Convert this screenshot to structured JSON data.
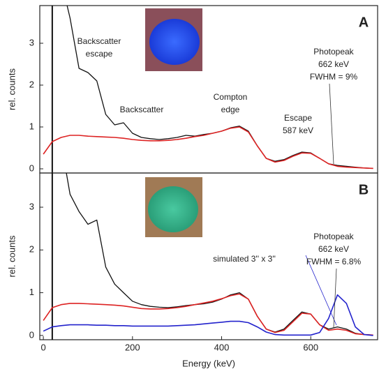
{
  "chart_data": [
    {
      "type": "line",
      "ylabel": "rel. counts",
      "panel_label": "A",
      "x": [
        0,
        20,
        40,
        60,
        80,
        100,
        120,
        140,
        160,
        180,
        200,
        220,
        240,
        260,
        280,
        300,
        320,
        340,
        360,
        380,
        400,
        420,
        440,
        460,
        480,
        500,
        520,
        540,
        560,
        580,
        600,
        620,
        640,
        660,
        680,
        700,
        720,
        740
      ],
      "series": [
        {
          "color": "#111111",
          "values": [
            null,
            null,
            4.5,
            3.6,
            2.4,
            2.3,
            2.1,
            1.3,
            1.05,
            1.1,
            0.85,
            0.75,
            0.72,
            0.7,
            0.72,
            0.75,
            0.8,
            0.78,
            0.82,
            0.85,
            0.9,
            0.98,
            1.02,
            0.9,
            0.55,
            0.25,
            0.18,
            0.22,
            0.32,
            0.4,
            0.38,
            0.25,
            0.12,
            0.08,
            0.06,
            0.04,
            0.02,
            0.01
          ]
        },
        {
          "color": "#dd2222",
          "values": [
            0.35,
            0.65,
            0.75,
            0.8,
            0.8,
            0.78,
            0.77,
            0.76,
            0.75,
            0.73,
            0.7,
            0.68,
            0.67,
            0.67,
            0.68,
            0.7,
            0.73,
            0.77,
            0.8,
            0.85,
            0.9,
            0.97,
            1.0,
            0.88,
            0.55,
            0.25,
            0.16,
            0.2,
            0.3,
            0.38,
            0.37,
            0.25,
            0.12,
            0.06,
            0.04,
            0.03,
            0.02,
            0.01
          ]
        }
      ],
      "vline": 20,
      "xlim": [
        -8,
        750
      ],
      "ylim": [
        -0.1,
        3.9
      ],
      "yticks": [
        0,
        1,
        2,
        3
      ],
      "annotations": [
        {
          "text": [
            "Backscatter",
            "escape"
          ]
        },
        {
          "text": [
            "Backscatter"
          ]
        },
        {
          "text": [
            "Compton",
            "edge"
          ]
        },
        {
          "text": [
            "Escape",
            "587 keV"
          ]
        },
        {
          "text": [
            "Photopeak",
            "662 keV",
            "FWHM = 9%"
          ]
        }
      ]
    },
    {
      "type": "line",
      "ylabel": "rel. counts",
      "xlabel": "Energy (keV)",
      "panel_label": "B",
      "x": [
        0,
        20,
        40,
        60,
        80,
        100,
        120,
        140,
        160,
        180,
        200,
        220,
        240,
        260,
        280,
        300,
        320,
        340,
        360,
        380,
        400,
        420,
        440,
        460,
        480,
        500,
        520,
        540,
        560,
        580,
        600,
        620,
        640,
        660,
        680,
        700,
        720,
        740
      ],
      "series": [
        {
          "color": "#111111",
          "values": [
            null,
            null,
            4.5,
            3.3,
            2.9,
            2.6,
            2.7,
            1.6,
            1.2,
            1.0,
            0.8,
            0.72,
            0.68,
            0.66,
            0.65,
            0.67,
            0.7,
            0.72,
            0.74,
            0.78,
            0.85,
            0.95,
            1.0,
            0.85,
            0.45,
            0.15,
            0.08,
            0.15,
            0.35,
            0.55,
            0.5,
            0.25,
            0.15,
            0.2,
            0.15,
            0.05,
            0.02,
            0.01
          ]
        },
        {
          "color": "#dd2222",
          "values": [
            0.35,
            0.65,
            0.72,
            0.75,
            0.75,
            0.74,
            0.73,
            0.72,
            0.71,
            0.69,
            0.66,
            0.63,
            0.62,
            0.62,
            0.63,
            0.65,
            0.68,
            0.72,
            0.76,
            0.8,
            0.86,
            0.93,
            0.97,
            0.85,
            0.45,
            0.15,
            0.07,
            0.12,
            0.32,
            0.52,
            0.5,
            0.25,
            0.12,
            0.15,
            0.12,
            0.04,
            0.02,
            0.01
          ]
        },
        {
          "color": "#2222cc",
          "values": [
            0.1,
            0.2,
            0.23,
            0.25,
            0.25,
            0.25,
            0.24,
            0.24,
            0.23,
            0.23,
            0.22,
            0.22,
            0.22,
            0.22,
            0.22,
            0.23,
            0.24,
            0.25,
            0.27,
            0.29,
            0.31,
            0.33,
            0.33,
            0.3,
            0.2,
            0.08,
            0.02,
            0.01,
            0.01,
            0.01,
            0.01,
            0.07,
            0.4,
            0.95,
            0.75,
            0.2,
            0.02,
            0.0
          ]
        }
      ],
      "vline": 20,
      "xlim": [
        -8,
        750
      ],
      "ylim": [
        -0.1,
        3.8
      ],
      "yticks": [
        0,
        1,
        2,
        3
      ],
      "xticks": [
        0,
        200,
        400,
        600
      ],
      "annotations": [
        {
          "text": [
            "simulated 3'' x 3''"
          ],
          "color": "#2222cc"
        },
        {
          "text": [
            "Photopeak",
            "662 keV",
            "FWHM = 6.8%"
          ]
        }
      ]
    }
  ]
}
